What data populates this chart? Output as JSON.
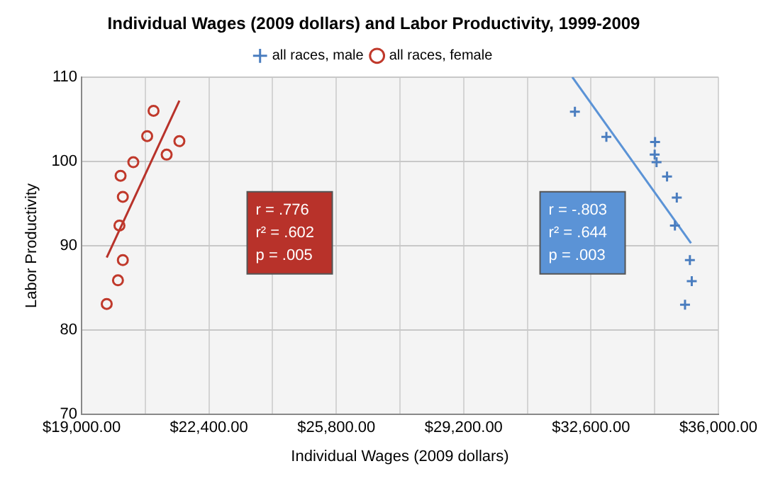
{
  "chart_data": {
    "type": "scatter",
    "title": "Individual Wages (2009 dollars) and Labor Productivity, 1999-2009",
    "xlabel": "Individual Wages (2009 dollars)",
    "ylabel": "Labor Productivity",
    "xlim": [
      19000,
      36000
    ],
    "ylim": [
      70,
      110
    ],
    "xticks": [
      {
        "value": 19000,
        "label": "$19,000.00"
      },
      {
        "value": 20700,
        "label": null
      },
      {
        "value": 22400,
        "label": "$22,400.00"
      },
      {
        "value": 24100,
        "label": null
      },
      {
        "value": 25800,
        "label": "$25,800.00"
      },
      {
        "value": 27500,
        "label": null
      },
      {
        "value": 29200,
        "label": "$29,200.00"
      },
      {
        "value": 30900,
        "label": null
      },
      {
        "value": 32600,
        "label": "$32,600.00"
      },
      {
        "value": 34300,
        "label": null
      },
      {
        "value": 36000,
        "label": "$36,000.00"
      }
    ],
    "yticks": [
      70,
      80,
      90,
      100,
      110
    ],
    "grid": true,
    "legend": "top",
    "series": [
      {
        "name": "all races, male",
        "marker": "cross",
        "color": "#4a7dbf",
        "x": [
          32170,
          33010,
          34310,
          34300,
          34350,
          34630,
          34890,
          34840,
          35240,
          35290,
          35110
        ],
        "values": [
          105.9,
          102.9,
          102.3,
          100.8,
          99.9,
          98.2,
          95.7,
          92.4,
          88.3,
          85.8,
          83.0
        ]
      },
      {
        "name": "all races, female",
        "marker": "circle",
        "color": "#c0392b",
        "x": [
          20920,
          20750,
          21610,
          21270,
          20380,
          20040,
          20100,
          20010,
          20100,
          19970,
          19670
        ],
        "values": [
          106.0,
          103.0,
          102.4,
          100.8,
          99.9,
          98.3,
          95.8,
          92.4,
          88.3,
          85.9,
          83.1
        ]
      },
      {
        "type": "line",
        "marker": "none",
        "color": "#b8322a",
        "x": [
          19670,
          21610
        ],
        "values": [
          88.6,
          107.2
        ]
      },
      {
        "type": "line",
        "marker": "none",
        "color": "#5b93d6",
        "x": [
          32100,
          35270
        ],
        "values": [
          110,
          90.3
        ]
      }
    ],
    "annotations": [
      "r = .776\nr² = .602\np = .005",
      "r = -.803\nr² = .644\np = .003"
    ]
  }
}
